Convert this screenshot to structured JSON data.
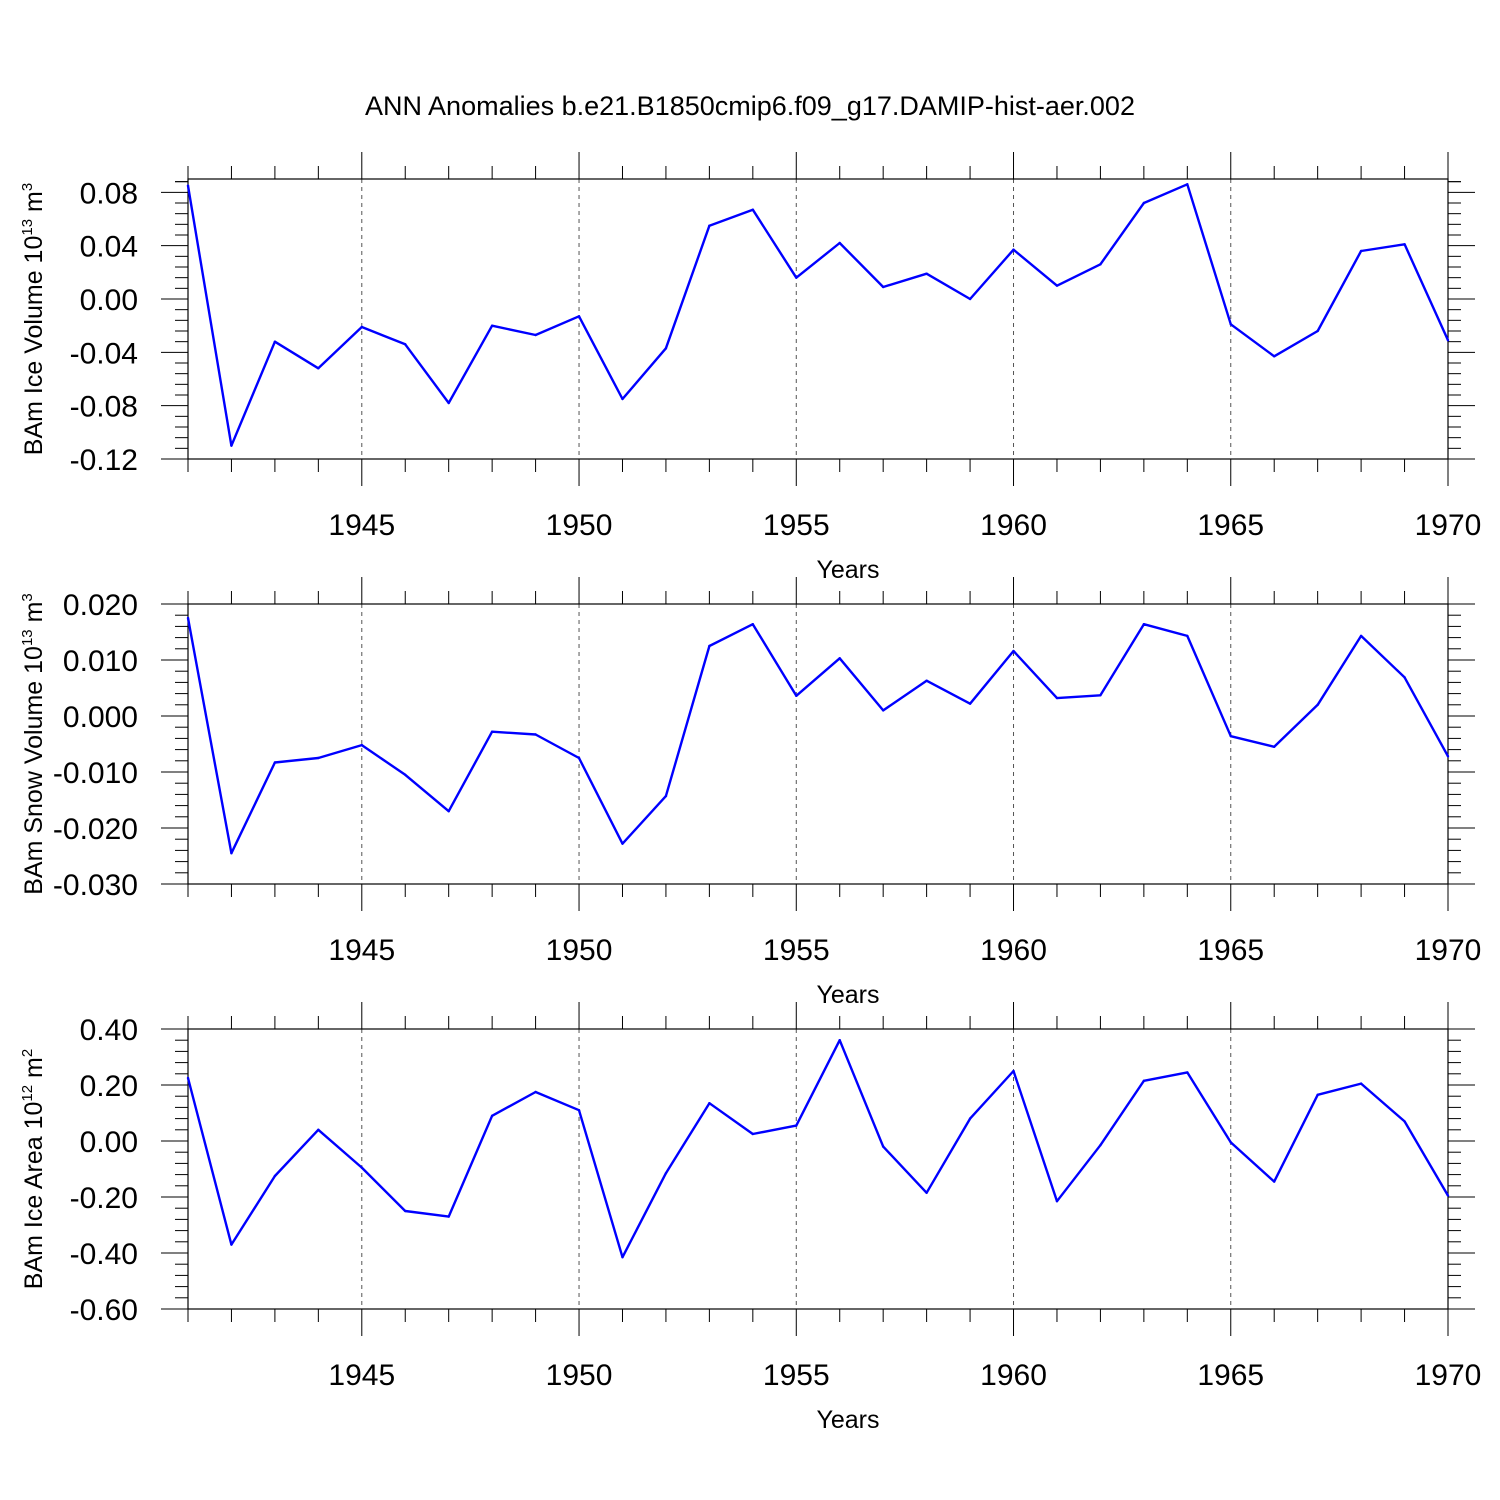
{
  "title": "ANN Anomalies b.e21.B1850cmip6.f09_g17.DAMIP-hist-aer.002",
  "colors": {
    "series": "#0000ff",
    "axis": "#000000",
    "grid": "#555555"
  },
  "chart_data": [
    {
      "type": "line",
      "ylabel": {
        "text": "BAm Ice Volume 10",
        "exp": "13",
        "unit": " m",
        "unit_exp": "3"
      },
      "xlabel": "Years",
      "xlim": [
        1941,
        1970
      ],
      "ylim": [
        -0.12,
        0.09
      ],
      "x_ticks": [
        1945,
        1950,
        1955,
        1960,
        1965,
        1970
      ],
      "y_ticks": [
        -0.12,
        -0.08,
        -0.04,
        0.0,
        0.04,
        0.08
      ],
      "y_tick_labels": [
        "-0.12",
        "-0.08",
        "-0.04",
        "0.00",
        "0.04",
        "0.08"
      ],
      "grid": "vertical dashed at major x ticks",
      "x": [
        1941,
        1942,
        1943,
        1944,
        1945,
        1946,
        1947,
        1948,
        1949,
        1950,
        1951,
        1952,
        1953,
        1954,
        1955,
        1956,
        1957,
        1958,
        1959,
        1960,
        1961,
        1962,
        1963,
        1964,
        1965,
        1966,
        1967,
        1968,
        1969,
        1970
      ],
      "values": [
        0.085,
        -0.11,
        -0.032,
        -0.052,
        -0.021,
        -0.034,
        -0.078,
        -0.02,
        -0.027,
        -0.013,
        -0.075,
        -0.037,
        0.055,
        0.067,
        0.016,
        0.042,
        0.009,
        0.019,
        0.0,
        0.037,
        0.01,
        0.026,
        0.072,
        0.086,
        -0.019,
        -0.043,
        -0.024,
        0.036,
        0.041,
        -0.031
      ]
    },
    {
      "type": "line",
      "ylabel": {
        "text": "BAm Snow Volume 10",
        "exp": "13",
        "unit": " m",
        "unit_exp": "3"
      },
      "xlabel": "Years",
      "xlim": [
        1941,
        1970
      ],
      "ylim": [
        -0.03,
        0.02
      ],
      "x_ticks": [
        1945,
        1950,
        1955,
        1960,
        1965,
        1970
      ],
      "y_ticks": [
        -0.03,
        -0.02,
        -0.01,
        0.0,
        0.01,
        0.02
      ],
      "y_tick_labels": [
        "-0.030",
        "-0.020",
        "-0.010",
        "0.000",
        "0.010",
        "0.020"
      ],
      "grid": "vertical dashed at major x ticks",
      "x": [
        1941,
        1942,
        1943,
        1944,
        1945,
        1946,
        1947,
        1948,
        1949,
        1950,
        1951,
        1952,
        1953,
        1954,
        1955,
        1956,
        1957,
        1958,
        1959,
        1960,
        1961,
        1962,
        1963,
        1964,
        1965,
        1966,
        1967,
        1968,
        1969,
        1970
      ],
      "values": [
        0.0175,
        -0.0245,
        -0.0083,
        -0.0075,
        -0.0052,
        -0.0105,
        -0.017,
        -0.0028,
        -0.0033,
        -0.0075,
        -0.0228,
        -0.0143,
        0.0125,
        0.0164,
        0.0036,
        0.0103,
        0.001,
        0.0063,
        0.0022,
        0.0116,
        0.0032,
        0.0037,
        0.0164,
        0.0143,
        -0.0036,
        -0.0055,
        0.002,
        0.0143,
        0.0069,
        -0.0072
      ]
    },
    {
      "type": "line",
      "ylabel": {
        "text": "BAm Ice Area 10",
        "exp": "12",
        "unit": " m",
        "unit_exp": "2"
      },
      "xlabel": "Years",
      "xlim": [
        1941,
        1970
      ],
      "ylim": [
        -0.6,
        0.4
      ],
      "x_ticks": [
        1945,
        1950,
        1955,
        1960,
        1965,
        1970
      ],
      "y_ticks": [
        -0.6,
        -0.4,
        -0.2,
        0.0,
        0.2,
        0.4
      ],
      "y_tick_labels": [
        "-0.60",
        "-0.40",
        "-0.20",
        "0.00",
        "0.20",
        "0.40"
      ],
      "grid": "vertical dashed at major x ticks",
      "x": [
        1941,
        1942,
        1943,
        1944,
        1945,
        1946,
        1947,
        1948,
        1949,
        1950,
        1951,
        1952,
        1953,
        1954,
        1955,
        1956,
        1957,
        1958,
        1959,
        1960,
        1961,
        1962,
        1963,
        1964,
        1965,
        1966,
        1967,
        1968,
        1969,
        1970
      ],
      "values": [
        0.225,
        -0.37,
        -0.125,
        0.04,
        -0.095,
        -0.25,
        -0.27,
        0.09,
        0.175,
        0.11,
        -0.415,
        -0.115,
        0.135,
        0.025,
        0.055,
        0.36,
        -0.02,
        -0.185,
        0.08,
        0.25,
        -0.215,
        -0.015,
        0.215,
        0.245,
        -0.005,
        -0.145,
        0.165,
        0.205,
        0.07,
        -0.195
      ]
    }
  ]
}
